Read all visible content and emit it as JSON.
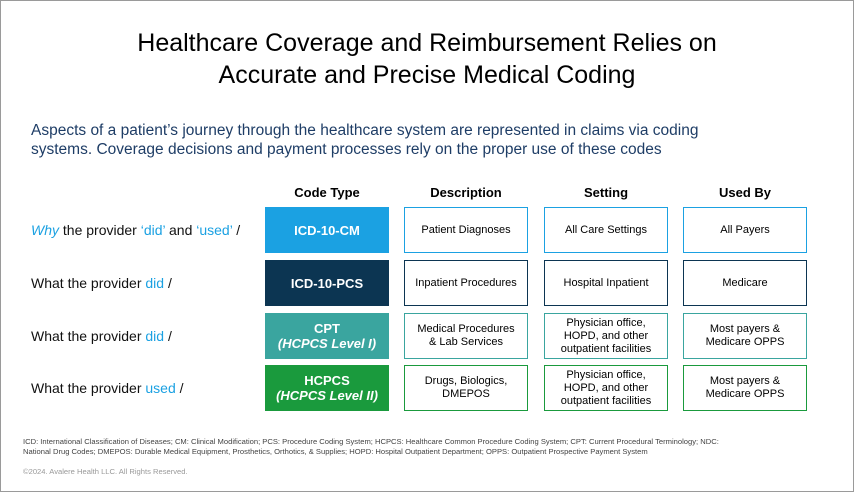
{
  "header": {
    "title": [
      "Healthcare Coverage and Reimbursement Relies on",
      "Accurate and Precise Medical Coding"
    ],
    "intro": [
      "Aspects of a patient’s journey through the healthcare system are represented in claims via coding",
      "systems. Coverage decisions and payment processes rely on the proper use of these codes"
    ]
  },
  "table": {
    "columns": [
      "Code Type",
      "Description",
      "Setting",
      "Used By"
    ],
    "accent": "#1ba1e2",
    "rows": [
      {
        "label": [
          {
            "text": "Why",
            "accent": true,
            "italic": true
          },
          {
            "text": " the provider "
          },
          {
            "text": "‘did’",
            "accent": true
          },
          {
            "text": " and "
          },
          {
            "text": "‘used’",
            "accent": true
          },
          {
            "text": " /"
          }
        ],
        "color": "#1ba1e2",
        "code": [
          "ICD-10-CM"
        ],
        "cells": [
          [
            "Patient Diagnoses"
          ],
          [
            "All Care Settings"
          ],
          [
            "All Payers"
          ]
        ]
      },
      {
        "label": [
          {
            "text": "What the provider "
          },
          {
            "text": "did",
            "accent": true
          },
          {
            "text": " /"
          }
        ],
        "color": "#0c3552",
        "code": [
          "ICD-10-PCS"
        ],
        "cells": [
          [
            "Inpatient Procedures"
          ],
          [
            "Hospital Inpatient"
          ],
          [
            "Medicare"
          ]
        ]
      },
      {
        "label": [
          {
            "text": "What the provider "
          },
          {
            "text": "did",
            "accent": true
          },
          {
            "text": " /"
          }
        ],
        "color": "#3aa59f",
        "code": [
          "CPT",
          "(HCPCS Level I)"
        ],
        "cells": [
          [
            "Medical Procedures",
            "& Lab Services"
          ],
          [
            "Physician office,",
            "HOPD, and other",
            "outpatient facilities"
          ],
          [
            "Most payers &",
            "Medicare OPPS"
          ]
        ]
      },
      {
        "label": [
          {
            "text": "What the provider "
          },
          {
            "text": "used",
            "accent": true
          },
          {
            "text": " /"
          }
        ],
        "color": "#1a9a3d",
        "code": [
          "HCPCS",
          "(HCPCS Level II)"
        ],
        "cells": [
          [
            "Drugs, Biologics,",
            "DMEPOS"
          ],
          [
            "Physician office,",
            "HOPD, and other",
            "outpatient facilities"
          ],
          [
            "Most payers &",
            "Medicare OPPS"
          ]
        ]
      }
    ]
  },
  "footer": {
    "notes": [
      "ICD: International Classification of Diseases; CM: Clinical Modification; PCS: Procedure Coding System; HCPCS: Healthcare Common Procedure Coding System; CPT: Current Procedural Terminology; NDC:",
      "National Drug Codes; DMEPOS: Durable Medical Equipment, Prosthetics, Orthotics, & Supplies; HOPD: Hospital Outpatient Department; OPPS: Outpatient Prospective Payment System"
    ],
    "copyright": "©2024. Avalere Health LLC. All Rights Reserved."
  }
}
